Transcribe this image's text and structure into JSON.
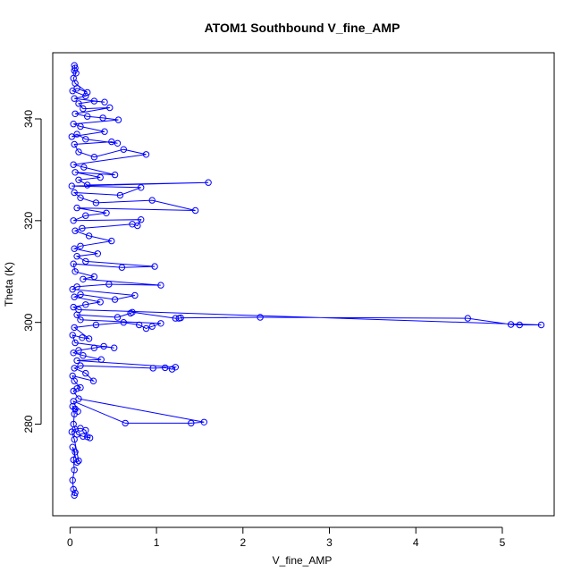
{
  "chart_data": {
    "type": "line",
    "title": "ATOM1 Southbound V_fine_AMP",
    "xlabel": "V_fine_AMP",
    "ylabel": "Theta (K)",
    "xlim": [
      -0.2,
      5.6
    ],
    "ylim": [
      262,
      353
    ],
    "x_ticks": [
      0,
      1,
      2,
      3,
      4,
      5
    ],
    "y_ticks": [
      280,
      300,
      320,
      340
    ],
    "grid": false,
    "legend": "none",
    "series_color": "#0000ff",
    "marker": "open-circle",
    "series": [
      {
        "values": [
          [
            0.05,
            266.0
          ],
          [
            0.06,
            266.5
          ],
          [
            0.04,
            267.2
          ],
          [
            0.03,
            269.0
          ],
          [
            0.05,
            271.0
          ],
          [
            0.04,
            273.0
          ],
          [
            0.06,
            274.5
          ],
          [
            0.03,
            275.5
          ],
          [
            0.08,
            272.5
          ],
          [
            0.1,
            272.8
          ],
          [
            0.05,
            277.0
          ],
          [
            0.02,
            278.5
          ],
          [
            0.06,
            279.0
          ],
          [
            0.12,
            279.2
          ],
          [
            0.18,
            278.8
          ],
          [
            0.2,
            277.5
          ],
          [
            0.23,
            277.3
          ],
          [
            0.15,
            277.6
          ],
          [
            0.08,
            278.0
          ],
          [
            0.04,
            280.0
          ],
          [
            0.05,
            282.0
          ],
          [
            0.03,
            283.5
          ],
          [
            0.06,
            283.0
          ],
          [
            0.09,
            282.5
          ],
          [
            0.04,
            284.5
          ],
          [
            0.64,
            280.2
          ],
          [
            1.4,
            280.2
          ],
          [
            1.55,
            280.4
          ],
          [
            0.1,
            285.0
          ],
          [
            0.04,
            286.5
          ],
          [
            0.08,
            287.0
          ],
          [
            0.12,
            287.2
          ],
          [
            0.05,
            288.5
          ],
          [
            0.03,
            289.5
          ],
          [
            0.27,
            288.5
          ],
          [
            0.18,
            290.0
          ],
          [
            0.05,
            291.0
          ],
          [
            0.12,
            291.5
          ],
          [
            0.96,
            291.0
          ],
          [
            1.1,
            291.1
          ],
          [
            1.18,
            290.8
          ],
          [
            1.22,
            291.2
          ],
          [
            0.08,
            292.5
          ],
          [
            0.36,
            292.7
          ],
          [
            0.15,
            293.5
          ],
          [
            0.04,
            294.0
          ],
          [
            0.1,
            294.5
          ],
          [
            0.28,
            295.0
          ],
          [
            0.39,
            295.3
          ],
          [
            0.51,
            295.0
          ],
          [
            0.06,
            296.0
          ],
          [
            0.03,
            297.5
          ],
          [
            0.14,
            297.0
          ],
          [
            0.22,
            296.8
          ],
          [
            0.05,
            299.0
          ],
          [
            0.3,
            299.5
          ],
          [
            0.62,
            300.0
          ],
          [
            0.8,
            299.5
          ],
          [
            0.88,
            298.8
          ],
          [
            0.95,
            299.2
          ],
          [
            1.05,
            299.8
          ],
          [
            0.12,
            300.5
          ],
          [
            0.08,
            301.5
          ],
          [
            0.55,
            301.0
          ],
          [
            0.7,
            301.8
          ],
          [
            0.72,
            302.0
          ],
          [
            1.22,
            300.8
          ],
          [
            1.26,
            300.8
          ],
          [
            1.28,
            300.9
          ],
          [
            2.2,
            301.0
          ],
          [
            4.6,
            300.8
          ],
          [
            5.1,
            299.6
          ],
          [
            5.2,
            299.5
          ],
          [
            5.45,
            299.5
          ],
          [
            0.1,
            302.5
          ],
          [
            0.04,
            303.0
          ],
          [
            0.18,
            303.5
          ],
          [
            0.35,
            304.0
          ],
          [
            0.05,
            305.0
          ],
          [
            0.12,
            305.5
          ],
          [
            0.52,
            304.5
          ],
          [
            0.75,
            305.3
          ],
          [
            0.03,
            306.5
          ],
          [
            0.08,
            307.0
          ],
          [
            0.45,
            307.5
          ],
          [
            1.05,
            307.3
          ],
          [
            0.15,
            308.5
          ],
          [
            0.28,
            309.0
          ],
          [
            0.06,
            310.0
          ],
          [
            0.04,
            311.5
          ],
          [
            0.6,
            310.8
          ],
          [
            0.98,
            311.0
          ],
          [
            0.18,
            312.0
          ],
          [
            0.08,
            313.0
          ],
          [
            0.32,
            313.5
          ],
          [
            0.05,
            314.5
          ],
          [
            0.12,
            315.0
          ],
          [
            0.48,
            316.0
          ],
          [
            0.22,
            317.0
          ],
          [
            0.06,
            318.0
          ],
          [
            0.14,
            318.5
          ],
          [
            0.72,
            319.3
          ],
          [
            0.78,
            319.0
          ],
          [
            0.82,
            320.2
          ],
          [
            0.04,
            320.0
          ],
          [
            0.18,
            321.0
          ],
          [
            0.42,
            321.5
          ],
          [
            0.08,
            322.5
          ],
          [
            1.45,
            322.0
          ],
          [
            0.95,
            324.0
          ],
          [
            0.3,
            323.5
          ],
          [
            0.12,
            324.5
          ],
          [
            0.05,
            325.5
          ],
          [
            0.58,
            325.0
          ],
          [
            0.82,
            326.5
          ],
          [
            0.02,
            326.8
          ],
          [
            1.6,
            327.5
          ],
          [
            0.2,
            327.0
          ],
          [
            0.1,
            328.0
          ],
          [
            0.35,
            328.5
          ],
          [
            0.06,
            329.5
          ],
          [
            0.52,
            329.0
          ],
          [
            0.16,
            330.5
          ],
          [
            0.04,
            331.0
          ],
          [
            0.88,
            333.0
          ],
          [
            0.62,
            334.0
          ],
          [
            0.28,
            332.5
          ],
          [
            0.1,
            333.5
          ],
          [
            0.05,
            335.0
          ],
          [
            0.48,
            335.5
          ],
          [
            0.55,
            335.2
          ],
          [
            0.18,
            336.0
          ],
          [
            0.08,
            337.0
          ],
          [
            0.02,
            336.5
          ],
          [
            0.4,
            337.5
          ],
          [
            0.12,
            338.5
          ],
          [
            0.04,
            339.0
          ],
          [
            0.56,
            339.8
          ],
          [
            0.38,
            340.2
          ],
          [
            0.2,
            340.5
          ],
          [
            0.06,
            341.0
          ],
          [
            0.46,
            342.2
          ],
          [
            0.15,
            342.0
          ],
          [
            0.1,
            343.0
          ],
          [
            0.28,
            343.5
          ],
          [
            0.4,
            343.3
          ],
          [
            0.05,
            344.0
          ],
          [
            0.18,
            344.5
          ],
          [
            0.03,
            345.5
          ],
          [
            0.08,
            346.0
          ],
          [
            0.2,
            345.2
          ],
          [
            0.06,
            347.0
          ],
          [
            0.04,
            348.0
          ],
          [
            0.07,
            349.0
          ],
          [
            0.05,
            349.5
          ],
          [
            0.06,
            350.0
          ],
          [
            0.05,
            350.5
          ]
        ]
      }
    ]
  }
}
